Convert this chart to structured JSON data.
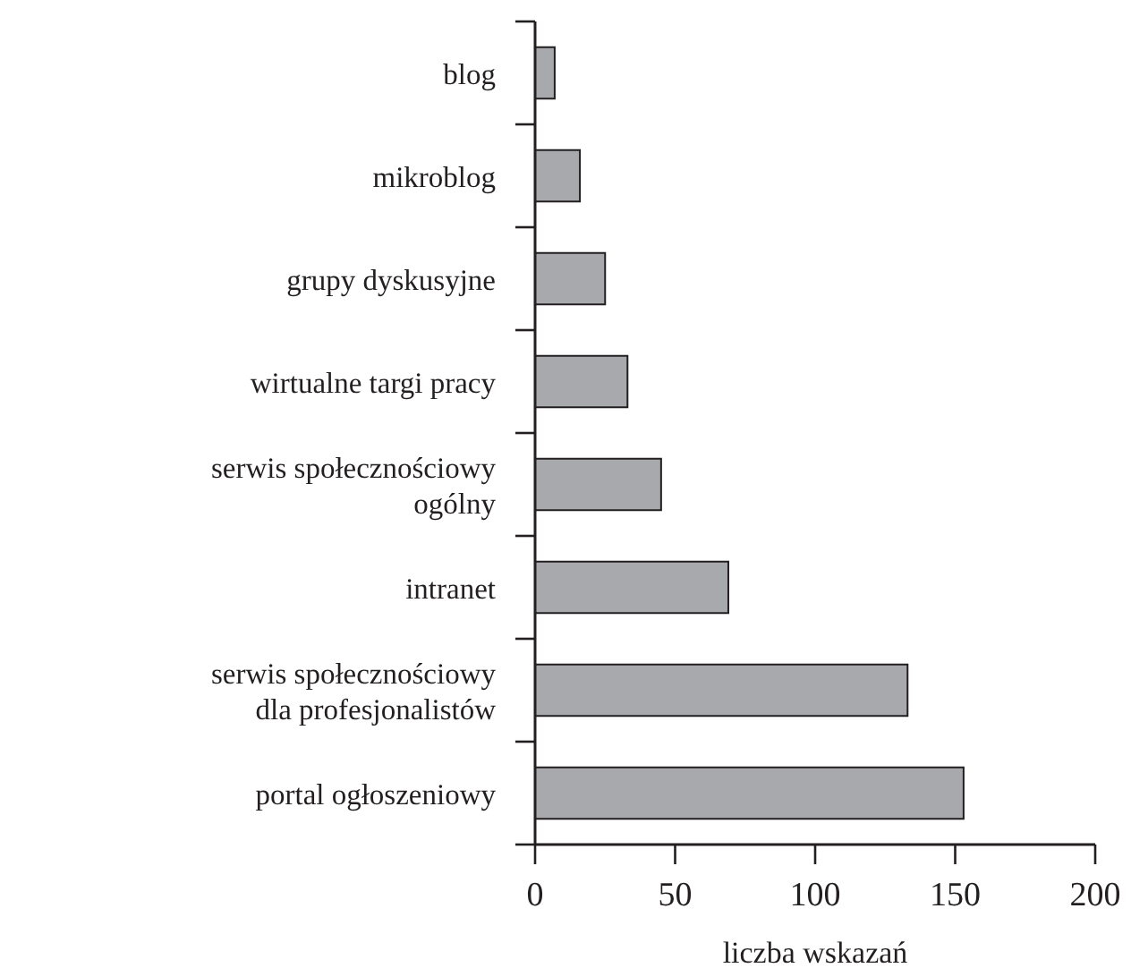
{
  "chart_data": {
    "type": "bar",
    "orientation": "horizontal",
    "xlabel": "liczba wskazań",
    "categories": [
      "blog",
      "mikroblog",
      "grupy dyskusyjne",
      "wirtualne targi pracy",
      "serwis społecznościowy ogólny",
      "intranet",
      "serwis społecznościowy dla profesjonalistów",
      "portal ogłoszeniowy"
    ],
    "values": [
      7,
      16,
      25,
      33,
      45,
      69,
      133,
      153
    ],
    "color": "#a7a9ac",
    "xlim": [
      0,
      200
    ],
    "xticks": [
      0,
      50,
      100,
      150,
      200
    ],
    "grid": false
  }
}
